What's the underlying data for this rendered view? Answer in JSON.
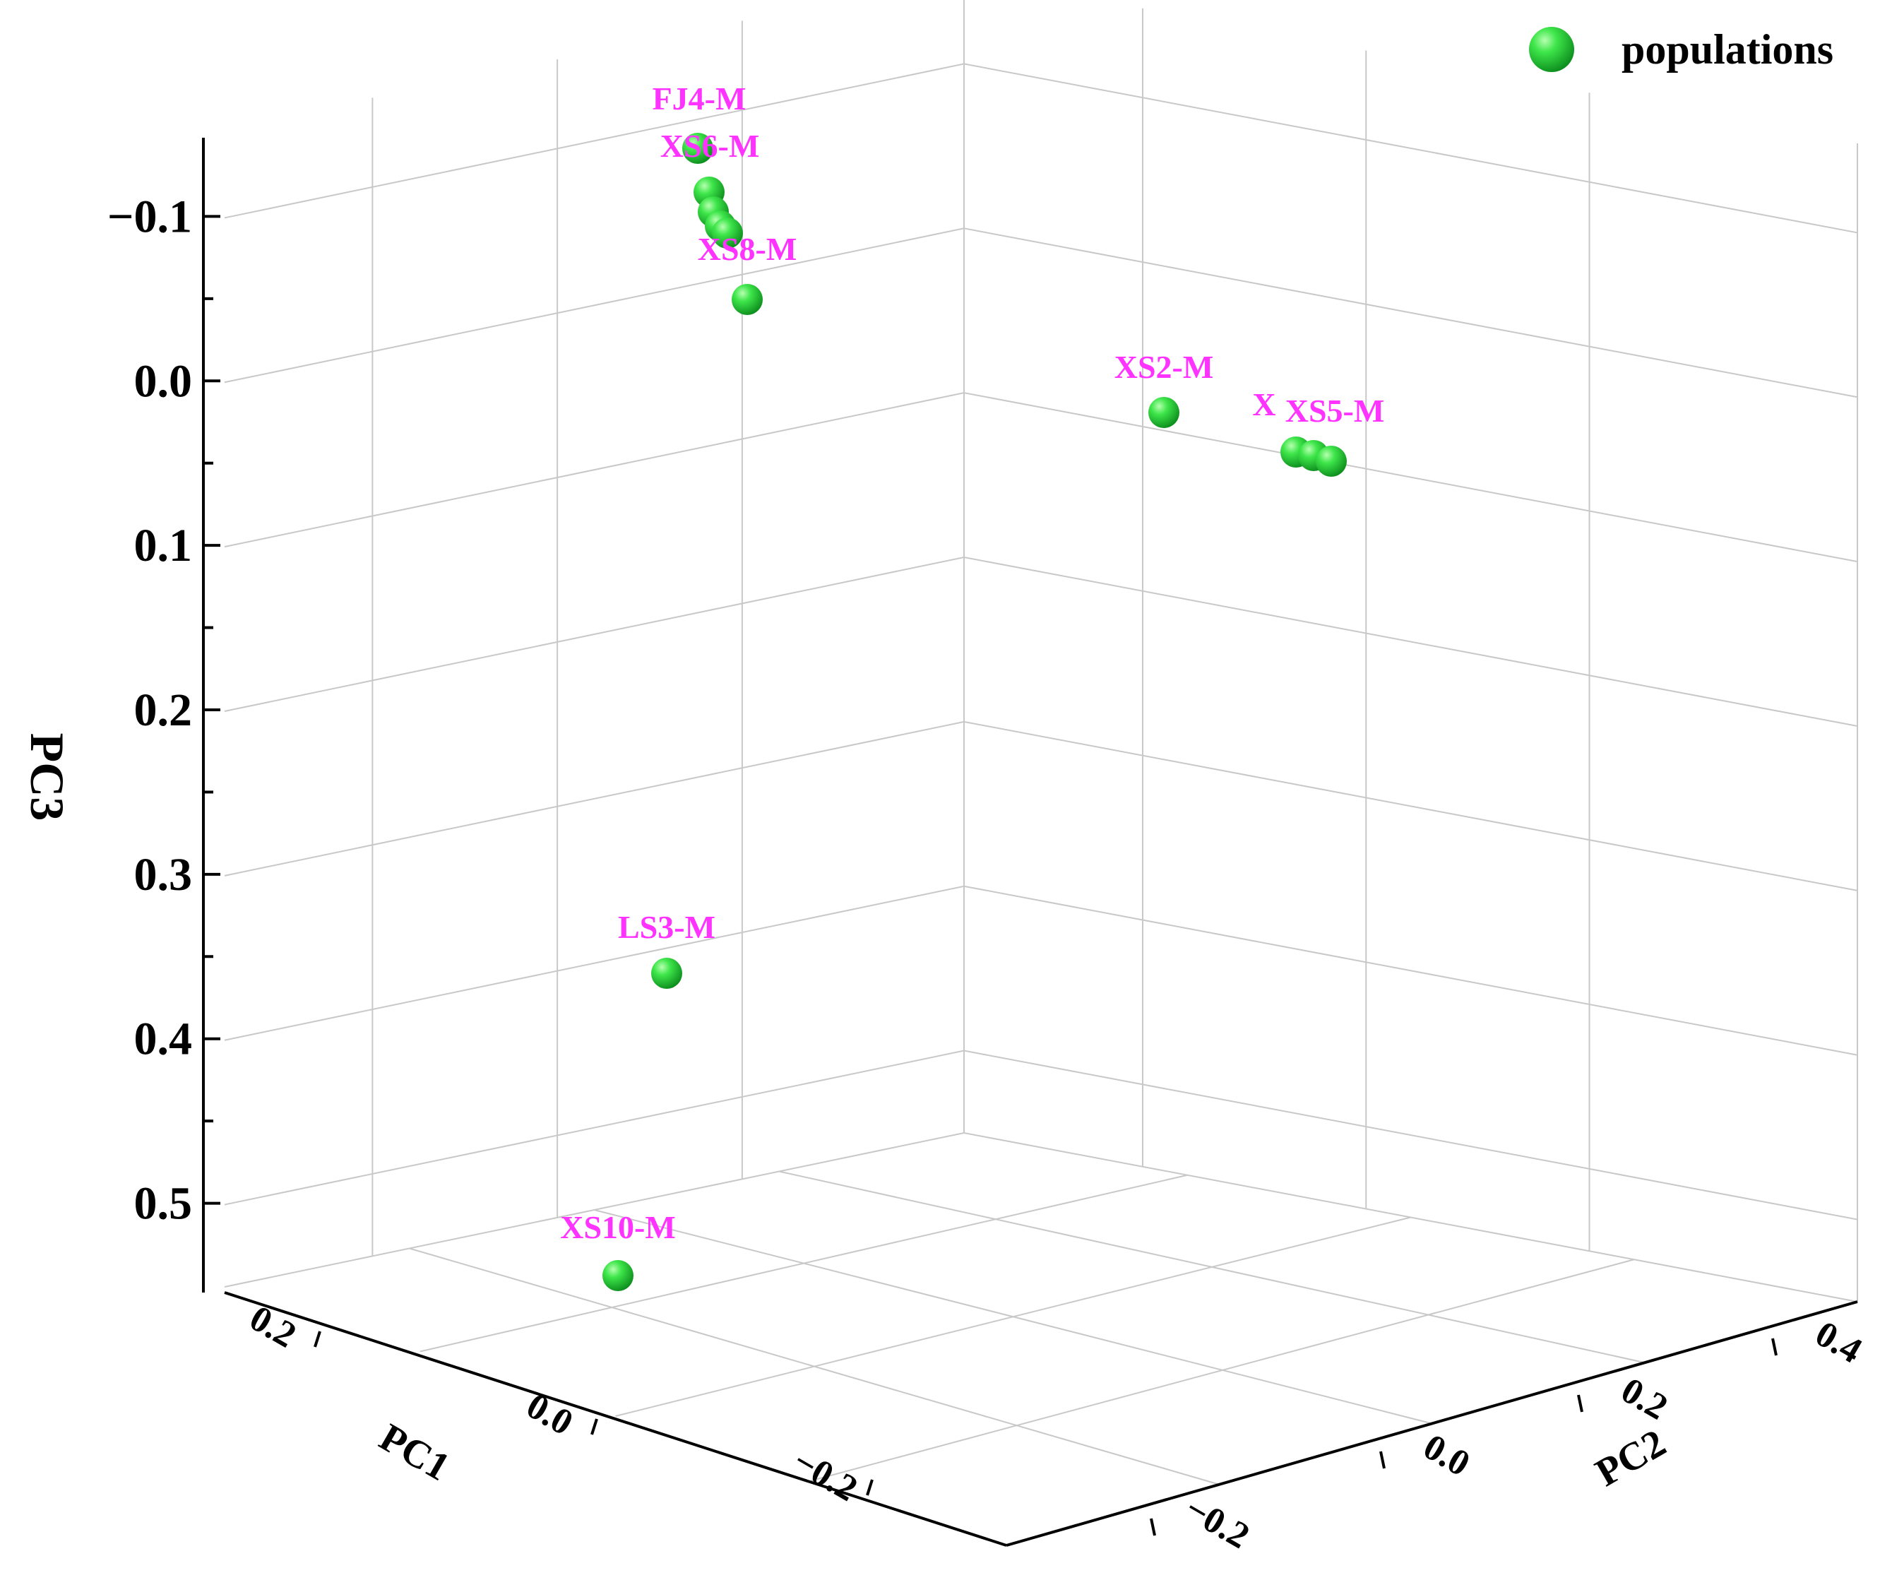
{
  "chart_data": {
    "type": "scatter",
    "subtype": "3d-scatter",
    "title": "",
    "legend": {
      "position": "top-right",
      "entries": [
        "populations"
      ]
    },
    "axes": {
      "x": {
        "label": "PC1",
        "ticks": [
          "0.2",
          "0.0",
          "−0.2"
        ]
      },
      "y": {
        "label": "PC2",
        "ticks": [
          "−0.2",
          "0.0",
          "0.2",
          "0.4"
        ]
      },
      "z": {
        "label": "PC3",
        "ticks": [
          "−0.1",
          "0.0",
          "0.1",
          "0.2",
          "0.3",
          "0.4",
          "0.5"
        ],
        "reversed": true
      }
    },
    "grid": true,
    "series": [
      {
        "name": "populations",
        "color": "#22cc33",
        "label_color": "#ff33ff",
        "points": [
          {
            "label": "FJ4-M",
            "pc3": -0.145
          },
          {
            "label": "XS6-M",
            "pc3": -0.12
          },
          {
            "label": "",
            "pc3": -0.11
          },
          {
            "label": "",
            "pc3": -0.1
          },
          {
            "label": "",
            "pc3": -0.095
          },
          {
            "label": "XS8-M",
            "pc3": -0.055
          },
          {
            "label": "XS2-M",
            "pc3": 0.013
          },
          {
            "label": "X",
            "pc3": 0.038
          },
          {
            "label": "",
            "pc3": 0.04
          },
          {
            "label": "XS5-M",
            "pc3": 0.042
          },
          {
            "label": "LS3-M",
            "pc3": 0.35
          },
          {
            "label": "XS10-M",
            "pc3": 0.53
          }
        ]
      }
    ]
  }
}
